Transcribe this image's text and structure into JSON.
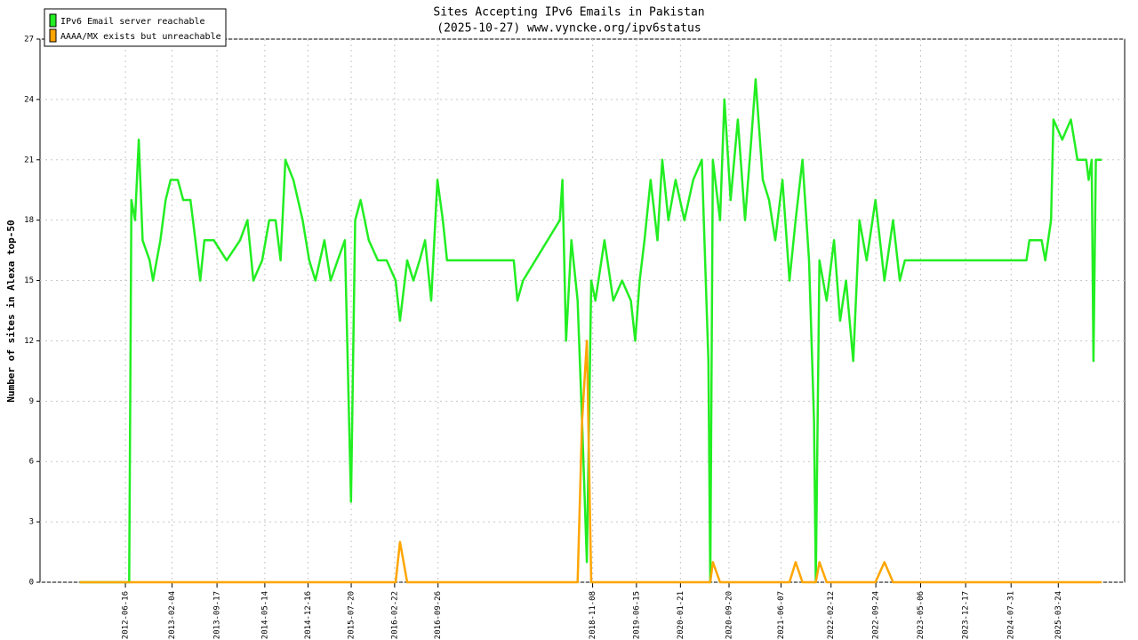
{
  "chart_data": {
    "type": "line",
    "title": "Sites Accepting IPv6 Emails in Pakistan",
    "subtitle": "(2025-10-27) www.vyncke.org/ipv6status",
    "y_label": "Number of sites in Alexa top-50",
    "x": [
      "2011-11-01",
      "2012-07-05",
      "2012-07-16",
      "2012-08-03",
      "2012-08-22",
      "2012-09-10",
      "2012-10-15",
      "2012-11-01",
      "2012-12-08",
      "2013-01-03",
      "2013-01-28",
      "2013-03-05",
      "2013-04-01",
      "2013-05-07",
      "2013-06-01",
      "2013-06-25",
      "2013-07-16",
      "2013-09-01",
      "2013-11-04",
      "2014-01-10",
      "2014-02-16",
      "2014-03-18",
      "2014-05-01",
      "2014-06-05",
      "2014-07-07",
      "2014-08-01",
      "2014-08-25",
      "2014-10-04",
      "2014-11-19",
      "2014-12-22",
      "2015-01-22",
      "2015-03-08",
      "2015-04-08",
      "2015-05-13",
      "2015-06-18",
      "2015-07-19",
      "2015-08-09",
      "2015-09-05",
      "2015-10-16",
      "2015-11-30",
      "2016-01-13",
      "2016-02-27",
      "2016-03-20",
      "2016-04-25",
      "2016-05-26",
      "2016-06-26",
      "2016-07-23",
      "2016-08-23",
      "2016-09-23",
      "2016-10-20",
      "2016-11-10",
      "2017-10-10",
      "2017-10-28",
      "2017-11-25",
      "2018-05-28",
      "2018-06-10",
      "2018-06-28",
      "2018-07-25",
      "2018-08-25",
      "2018-09-16",
      "2018-10-10",
      "2018-11-01",
      "2018-11-22",
      "2019-01-06",
      "2019-02-19",
      "2019-04-04",
      "2019-05-18",
      "2019-06-09",
      "2019-07-01",
      "2019-07-25",
      "2019-08-25",
      "2019-09-28",
      "2019-10-22",
      "2019-11-22",
      "2019-12-28",
      "2020-02-10",
      "2020-03-25",
      "2020-05-07",
      "2020-06-09",
      "2020-06-18",
      "2020-07-01",
      "2020-08-06",
      "2020-08-28",
      "2020-09-28",
      "2020-11-03",
      "2020-12-09",
      "2021-01-09",
      "2021-01-31",
      "2021-03-08",
      "2021-04-08",
      "2021-05-09",
      "2021-06-14",
      "2021-07-19",
      "2021-08-19",
      "2021-09-22",
      "2021-10-25",
      "2021-11-19",
      "2021-11-28",
      "2021-12-16",
      "2022-01-21",
      "2022-02-27",
      "2022-03-29",
      "2022-04-28",
      "2022-06-03",
      "2022-07-04",
      "2022-08-09",
      "2022-09-22",
      "2022-11-06",
      "2022-12-19",
      "2023-01-22",
      "2023-02-16",
      "2024-10-16",
      "2024-10-31",
      "2024-12-31",
      "2025-01-18",
      "2025-02-16",
      "2025-02-28",
      "2025-04-13",
      "2025-05-26",
      "2025-06-28",
      "2025-08-11",
      "2025-08-23",
      "2025-09-07",
      "2025-09-16",
      "2025-09-28",
      "2025-10-27"
    ],
    "series": [
      {
        "name": "IPv6 Email server reachable",
        "color": "#22ee22",
        "values": [
          0,
          0,
          19,
          18,
          22,
          17,
          16,
          15,
          17,
          19,
          20,
          20,
          19,
          19,
          17,
          15,
          17,
          17,
          16,
          17,
          18,
          15,
          16,
          18,
          18,
          16,
          21,
          20,
          18,
          16,
          15,
          17,
          15,
          16,
          17,
          4,
          18,
          19,
          17,
          16,
          16,
          15,
          13,
          16,
          15,
          16,
          17,
          14,
          20,
          18,
          16,
          16,
          14,
          15,
          18,
          20,
          12,
          17,
          14,
          8,
          1,
          15,
          14,
          17,
          14,
          15,
          14,
          12,
          15,
          17,
          20,
          17,
          21,
          18,
          20,
          18,
          20,
          21,
          11,
          0,
          21,
          18,
          24,
          19,
          23,
          18,
          22,
          25,
          20,
          19,
          17,
          20,
          15,
          18,
          21,
          16,
          8,
          0,
          16,
          14,
          17,
          13,
          15,
          11,
          18,
          16,
          19,
          15,
          18,
          15,
          16,
          16,
          17,
          17,
          16,
          18,
          23,
          22,
          23,
          21,
          21,
          20,
          21,
          11,
          21,
          21
        ]
      },
      {
        "name": "AAAA/MX exists but unreachable",
        "color": "#ffa500",
        "values": [
          0,
          0,
          0,
          0,
          0,
          0,
          0,
          0,
          0,
          0,
          0,
          0,
          0,
          0,
          0,
          0,
          0,
          0,
          0,
          0,
          0,
          0,
          0,
          0,
          0,
          0,
          0,
          0,
          0,
          0,
          0,
          0,
          0,
          0,
          0,
          0,
          0,
          0,
          0,
          0,
          0,
          0,
          2,
          0,
          0,
          0,
          0,
          0,
          0,
          0,
          0,
          0,
          0,
          0,
          0,
          0,
          0,
          0,
          0,
          8,
          12,
          0,
          0,
          0,
          0,
          0,
          0,
          0,
          0,
          0,
          0,
          0,
          0,
          0,
          0,
          0,
          0,
          0,
          0,
          0,
          1,
          0,
          0,
          0,
          0,
          0,
          0,
          0,
          0,
          0,
          0,
          0,
          0,
          1,
          0,
          0,
          0,
          0,
          1,
          0,
          0,
          0,
          0,
          0,
          0,
          0,
          0,
          1,
          0,
          0,
          0,
          0,
          0,
          0,
          0,
          0,
          0,
          0,
          0,
          0,
          0,
          0,
          0,
          0,
          0,
          0
        ]
      }
    ],
    "xlim": [
      "2011-04-16",
      "2026-02-19"
    ],
    "xticks": [
      "2012-06-16",
      "2013-02-04",
      "2013-09-17",
      "2014-05-14",
      "2014-12-16",
      "2015-07-20",
      "2016-02-22",
      "2016-09-26",
      "2018-11-08",
      "2019-06-15",
      "2020-01-21",
      "2020-09-20",
      "2021-06-07",
      "2022-02-12",
      "2022-09-24",
      "2023-05-06",
      "2023-12-17",
      "2024-07-31",
      "2025-03-24"
    ],
    "ylim": [
      0,
      27
    ],
    "yticks": [
      0,
      3,
      6,
      9,
      12,
      15,
      18,
      21,
      24,
      27
    ],
    "grid": true,
    "legend": "upper left"
  }
}
